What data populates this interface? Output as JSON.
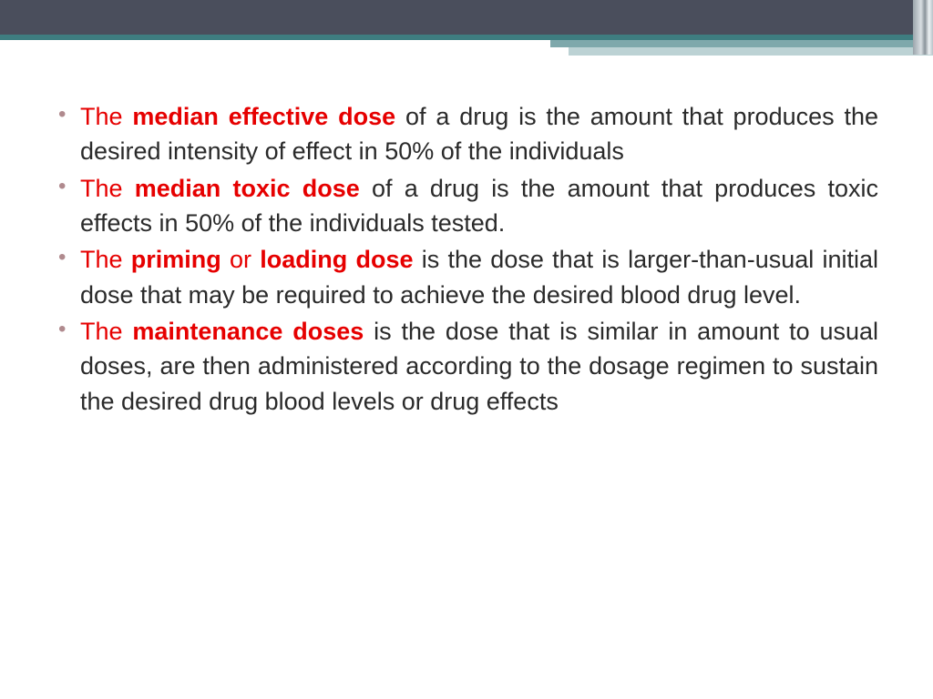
{
  "colors": {
    "header_dark": "#4a4e5c",
    "header_teal": "#3e7d80",
    "accent_1": "#7ea8ab",
    "accent_2": "#bcd2d4",
    "text_body": "#2a2a2a",
    "text_highlight": "#e60000",
    "bullet": "#b08a8e",
    "background": "#ffffff"
  },
  "typography": {
    "body_fontsize": 27,
    "line_height": 1.42,
    "font_family": "Arial"
  },
  "bullets": [
    {
      "prefix": "The ",
      "term": "median effective dose",
      "suffix": " of a drug is the amount that produces the desired intensity of effect in 50% of the individuals",
      "prefix_space": ""
    },
    {
      "prefix": "The ",
      "term": "median toxic dose",
      "suffix": " of a drug is the amount that produces toxic effects in 50% of the individuals tested.",
      "prefix_space": " "
    },
    {
      "prefix": "The ",
      "term_pre": "priming",
      "term_mid": " or ",
      "term_post": "loading dose",
      "suffix": " is the dose that is larger-than-usual initial dose  that may be required to achieve the desired blood drug level.",
      "prefix_space": ""
    },
    {
      "prefix": "The ",
      "term": "maintenance doses",
      "suffix": " is the dose that is similar in amount to usual doses, are then administered according to the dosage regimen to sustain the desired drug blood levels or drug effects",
      "prefix_space": ""
    }
  ]
}
